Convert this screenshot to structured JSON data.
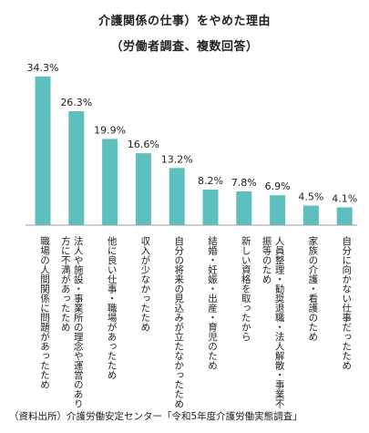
{
  "title_line1": "介護関係の仕事）をやめた理由",
  "title_line2": "（労働者調査、複数回答）",
  "source": "（資料出所）介護労働安定センター「令和5年度介護労働実態調査」",
  "colors": {
    "bar": "#5ebfbf",
    "axis": "#9e9e9e",
    "text": "#222222"
  },
  "chart_data": {
    "type": "bar",
    "title": "介護関係の仕事）をやめた理由",
    "subtitle": "（労働者調査、複数回答）",
    "unit": "%",
    "categories": [
      [
        "職場の人間関係に問題があったため"
      ],
      [
        "法人や施設・事業所の理念や運営のあり",
        "方に不満があったため"
      ],
      [
        "他に良い仕事・職場があったため"
      ],
      [
        "収入が少なかったため"
      ],
      [
        "自分の将来の見込みが立たなかったため"
      ],
      [
        "結婚・妊娠・出産・育児のため"
      ],
      [
        "新しい資格を取ったから"
      ],
      [
        "人員整理・勧奨退職・法人解散・事業不",
        "振等のため"
      ],
      [
        "家族の介護・看護のため"
      ],
      [
        "自分に向かない仕事だったため"
      ]
    ],
    "values": [
      34.3,
      26.3,
      19.9,
      16.6,
      13.2,
      8.2,
      7.8,
      6.9,
      4.5,
      4.1
    ],
    "labels": [
      "34.3%",
      "26.3%",
      "19.9%",
      "16.6%",
      "13.2%",
      "8.2%",
      "7.8%",
      "6.9%",
      "4.5%",
      "4.1%"
    ],
    "ylim": [
      0,
      34.3
    ],
    "grid": false,
    "legend": "none"
  }
}
